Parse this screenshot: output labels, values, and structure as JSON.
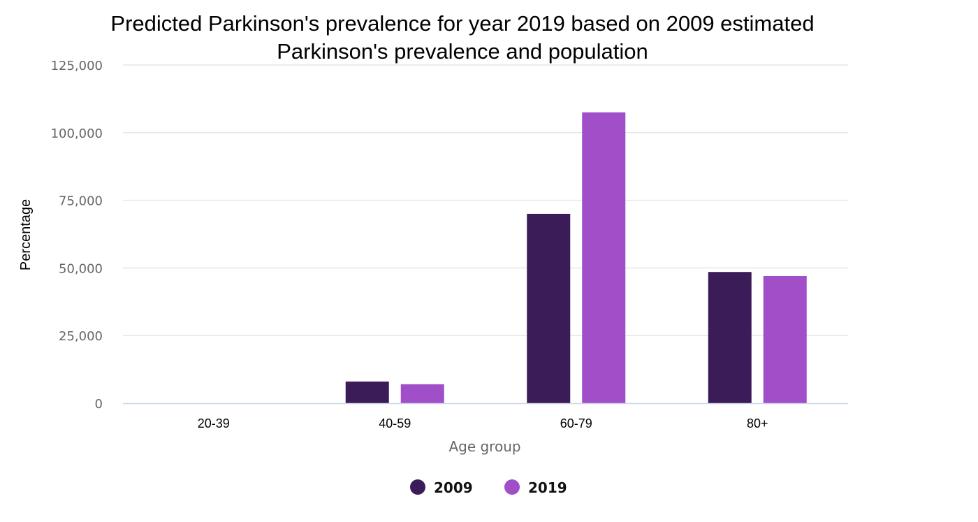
{
  "chart_data": {
    "type": "bar",
    "title_lines": [
      "Predicted Parkinson's prevalence for year 2019 based on 2009 estimated",
      "Parkinson's prevalence and population"
    ],
    "xlabel": "Age group",
    "ylabel": "Percentage",
    "categories": [
      "20-39",
      "40-59",
      "60-79",
      "80+"
    ],
    "y_ticks": [
      {
        "value": 0,
        "label": "0"
      },
      {
        "value": 25000,
        "label": "25,000"
      },
      {
        "value": 50000,
        "label": "50,000"
      },
      {
        "value": 75000,
        "label": "75,000"
      },
      {
        "value": 100000,
        "label": "100,000"
      },
      {
        "value": 125000,
        "label": "125,000"
      }
    ],
    "ylim": [
      0,
      125000
    ],
    "grid": true,
    "legend_position": "bottom-center",
    "series": [
      {
        "name": "2009",
        "color": "#3b1c58",
        "values": [
          0,
          8000,
          70000,
          48500
        ]
      },
      {
        "name": "2019",
        "color": "#a14ec9",
        "values": [
          0,
          7000,
          107500,
          47000
        ]
      }
    ],
    "colors": {
      "gridline": "#e6e6e6",
      "axis_line": "#ccd6eb"
    }
  }
}
